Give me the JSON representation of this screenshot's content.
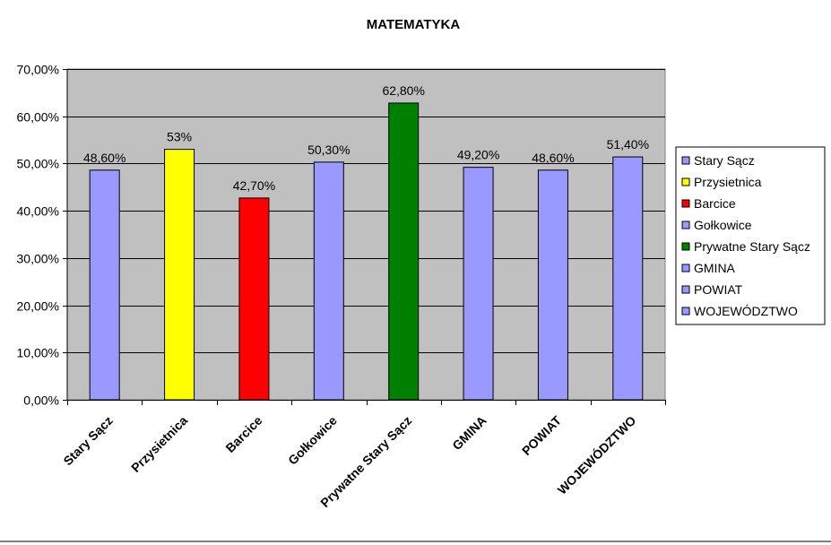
{
  "chart_data": {
    "type": "bar",
    "title": "MATEMATYKA",
    "xlabel": "",
    "ylabel": "",
    "ylim": [
      0,
      70
    ],
    "yticks": [
      {
        "value": 0,
        "label": "0,00%"
      },
      {
        "value": 10,
        "label": "10,00%"
      },
      {
        "value": 20,
        "label": "20,00%"
      },
      {
        "value": 30,
        "label": "30,00%"
      },
      {
        "value": 40,
        "label": "40,00%"
      },
      {
        "value": 50,
        "label": "50,00%"
      },
      {
        "value": 60,
        "label": "60,00%"
      },
      {
        "value": 70,
        "label": "70,00%"
      }
    ],
    "grid": true,
    "legend_position": "right",
    "plot_background": "#C0C0C0",
    "categories": [
      "Stary Sącz",
      "Przysietnica",
      "Barcice",
      "Gołkowice",
      "Prywatne Stary Sącz",
      "GMINA",
      "POWIAT",
      "WOJEWÓDZTWO"
    ],
    "values": [
      48.6,
      53,
      42.7,
      50.3,
      62.8,
      49.2,
      48.6,
      51.4
    ],
    "data_labels": [
      "48,60%",
      "53%",
      "42,70%",
      "50,30%",
      "62,80%",
      "49,20%",
      "48,60%",
      "51,40%"
    ],
    "colors": [
      "#9999FF",
      "#FFFF00",
      "#FF0000",
      "#9999FF",
      "#008000",
      "#9999FF",
      "#9999FF",
      "#9999FF"
    ],
    "legend": [
      "Stary Sącz",
      "Przysietnica",
      "Barcice",
      "Gołkowice",
      "Prywatne Stary Sącz",
      "GMINA",
      "POWIAT",
      "WOJEWÓDZTWO"
    ]
  }
}
